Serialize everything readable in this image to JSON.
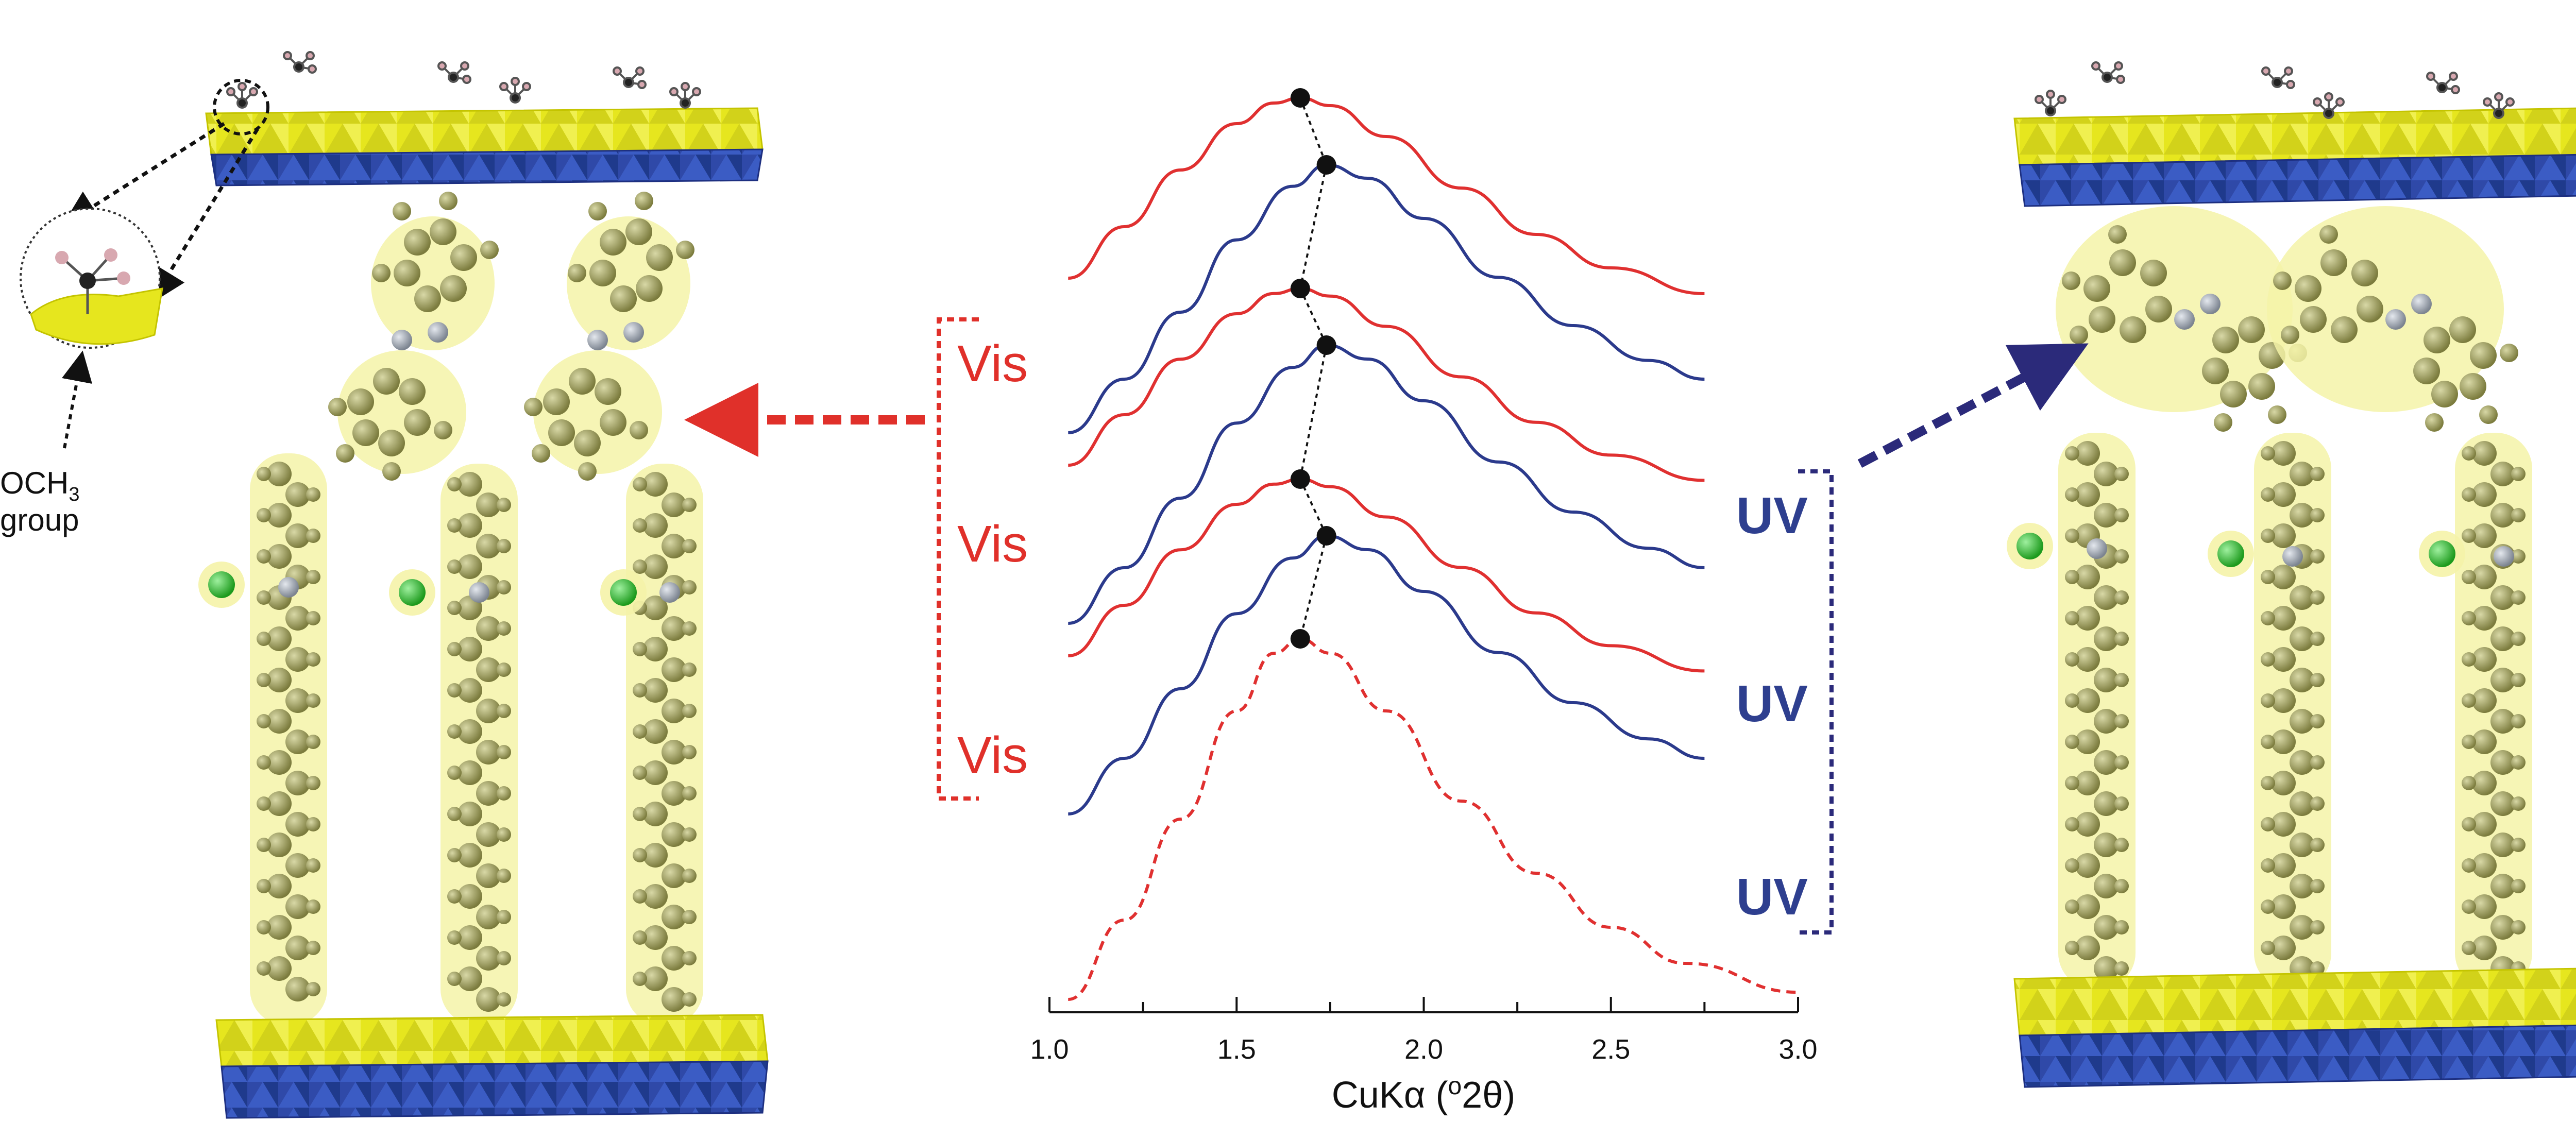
{
  "colors": {
    "vis": "#e03030",
    "uv": "#2b3a8c",
    "label_vis": "#e0302a",
    "label_uv": "#2e3f8f",
    "slab_top": "#e8e820",
    "slab_bottom": "#2f49a8",
    "molecule": "#9b9b5c",
    "halo": "#f5f3a8",
    "chloride": "#37b837",
    "nitrogen": "#9aa0a8"
  },
  "chart_data": {
    "type": "line",
    "xlabel": "CuKα (°2θ)",
    "xlim": [
      1.0,
      3.0
    ],
    "xticks": [
      "1.0",
      "1.5",
      "2.0",
      "2.5",
      "3.0"
    ],
    "y_axis_shown": false,
    "legend": "none",
    "bracket_labels": {
      "vis": [
        "Vis",
        "Vis",
        "Vis"
      ],
      "uv": [
        "UV",
        "UV",
        "UV"
      ]
    },
    "series": [
      {
        "color": "red",
        "dashed": false,
        "peak_x": 1.67,
        "x": [
          1.05,
          1.2,
          1.35,
          1.5,
          1.6,
          1.67,
          1.75,
          1.9,
          2.1,
          2.3,
          2.5,
          2.75
        ],
        "y": [
          0.3,
          0.5,
          0.72,
          0.9,
          0.98,
          1.0,
          0.97,
          0.85,
          0.65,
          0.47,
          0.34,
          0.24
        ]
      },
      {
        "color": "blue",
        "dashed": false,
        "peak_x": 1.74,
        "x": [
          1.05,
          1.2,
          1.35,
          1.5,
          1.65,
          1.74,
          1.85,
          2.0,
          2.2,
          2.4,
          2.6,
          2.75
        ],
        "y": [
          0.0,
          0.2,
          0.45,
          0.72,
          0.92,
          1.0,
          0.95,
          0.8,
          0.58,
          0.4,
          0.27,
          0.2
        ]
      },
      {
        "color": "red",
        "dashed": false,
        "peak_x": 1.67,
        "x": [
          1.05,
          1.2,
          1.35,
          1.5,
          1.6,
          1.67,
          1.75,
          1.9,
          2.1,
          2.3,
          2.5,
          2.75
        ],
        "y": [
          0.3,
          0.5,
          0.72,
          0.9,
          0.98,
          1.0,
          0.97,
          0.85,
          0.65,
          0.47,
          0.34,
          0.24
        ]
      },
      {
        "color": "blue",
        "dashed": false,
        "peak_x": 1.74,
        "x": [
          1.05,
          1.2,
          1.35,
          1.5,
          1.65,
          1.74,
          1.85,
          2.0,
          2.2,
          2.4,
          2.6,
          2.75
        ],
        "y": [
          0.0,
          0.2,
          0.45,
          0.72,
          0.92,
          1.0,
          0.95,
          0.8,
          0.58,
          0.4,
          0.27,
          0.2
        ]
      },
      {
        "color": "red",
        "dashed": false,
        "peak_x": 1.67,
        "x": [
          1.05,
          1.2,
          1.35,
          1.5,
          1.6,
          1.67,
          1.75,
          1.9,
          2.1,
          2.3,
          2.5,
          2.75
        ],
        "y": [
          0.3,
          0.5,
          0.72,
          0.9,
          0.98,
          1.0,
          0.97,
          0.85,
          0.65,
          0.47,
          0.34,
          0.24
        ]
      },
      {
        "color": "blue",
        "dashed": false,
        "peak_x": 1.74,
        "x": [
          1.05,
          1.2,
          1.35,
          1.5,
          1.65,
          1.74,
          1.85,
          2.0,
          2.2,
          2.4,
          2.6,
          2.75
        ],
        "y": [
          0.0,
          0.2,
          0.45,
          0.72,
          0.92,
          1.0,
          0.95,
          0.8,
          0.58,
          0.4,
          0.27,
          0.2
        ]
      },
      {
        "color": "red",
        "dashed": true,
        "peak_x": 1.67,
        "x": [
          1.05,
          1.2,
          1.35,
          1.5,
          1.6,
          1.67,
          1.75,
          1.9,
          2.1,
          2.3,
          2.5,
          2.7,
          3.0
        ],
        "y": [
          0.0,
          0.22,
          0.5,
          0.8,
          0.96,
          1.0,
          0.96,
          0.8,
          0.55,
          0.35,
          0.2,
          0.1,
          0.02
        ]
      }
    ]
  },
  "annotation": {
    "group_label_top": "OCH",
    "group_label_sub": "3",
    "group_label_bottom": "group"
  },
  "illustrations": [
    {
      "name": "state-vis-structure",
      "description_icon": "layered-structure-cis-azobenzene"
    },
    {
      "name": "state-uv-structure",
      "description_icon": "layered-structure-trans-azobenzene"
    }
  ]
}
